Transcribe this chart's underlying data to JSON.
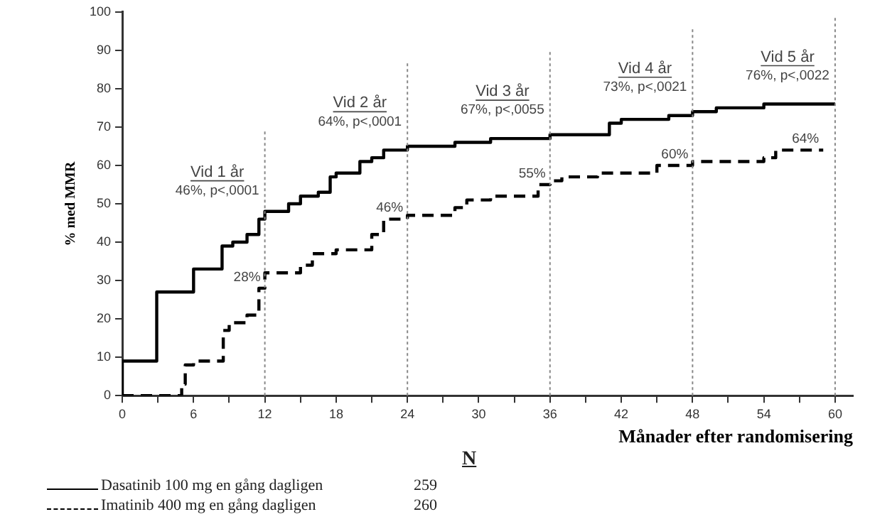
{
  "chart_data": {
    "type": "step",
    "xlabel": "Månader efter randomisering",
    "ylabel": "% med MMR",
    "xlim": [
      0,
      61.5
    ],
    "xticks": [
      0,
      {
        "value": 3,
        "label": null
      },
      6,
      {
        "value": 9,
        "label": null
      },
      12,
      {
        "value": 15,
        "label": null
      },
      18,
      {
        "value": 21,
        "label": null
      },
      24,
      {
        "value": 27,
        "label": null
      },
      30,
      {
        "value": 33,
        "label": null
      },
      36,
      {
        "value": 39,
        "label": null
      },
      42,
      {
        "value": 45,
        "label": null
      },
      48,
      {
        "value": 51,
        "label": null
      },
      54,
      {
        "value": 57,
        "label": null
      },
      60
    ],
    "ylim": [
      0,
      100
    ],
    "yticks": [
      0,
      10,
      20,
      30,
      40,
      50,
      60,
      70,
      80,
      90,
      100
    ],
    "grid": false,
    "legend": "bottom",
    "marker": "none",
    "series": [
      {
        "name": "Dasatinib 100 mg en gång dagligen",
        "color": "#000000",
        "line_style": "solid",
        "x": [
          0,
          2.9,
          6,
          8.4,
          9.3,
          10.5,
          11.5,
          12,
          14,
          15,
          16.5,
          17.5,
          18,
          20,
          21,
          22,
          24,
          28,
          31,
          36,
          41,
          42,
          46,
          48,
          50,
          54,
          55,
          60
        ],
        "values": [
          0,
          9,
          27,
          33,
          39,
          40,
          42,
          46,
          48,
          50,
          52,
          53,
          57,
          58,
          61,
          62,
          64,
          65,
          66,
          67,
          68,
          71,
          72,
          73,
          74,
          75,
          76,
          76
        ]
      },
      {
        "name": "Imatinib 400 mg en gång dagligen",
        "color": "#000000",
        "line_style": "dashed",
        "x": [
          0,
          5,
          5.3,
          6,
          8.5,
          9,
          10.5,
          11.5,
          12,
          15,
          16,
          18,
          21,
          22,
          24,
          28,
          29,
          31,
          35,
          36,
          37,
          40,
          45,
          48,
          54,
          55,
          59
        ],
        "values": [
          0,
          0,
          3,
          8,
          9,
          17,
          19,
          21,
          28,
          32,
          34,
          37,
          38,
          42,
          46,
          47,
          49,
          51,
          52,
          55,
          56,
          57,
          58,
          60,
          61,
          62,
          64
        ]
      }
    ],
    "ref_lines": [
      {
        "axis": "x",
        "value": 12,
        "label": "Vid 1 år",
        "line_style": "dotted",
        "color": "#888888"
      },
      {
        "axis": "x",
        "value": 24,
        "label": "Vid 2 år",
        "line_style": "dotted",
        "color": "#888888"
      },
      {
        "axis": "x",
        "value": 36,
        "label": "Vid 3 år",
        "line_style": "dotted",
        "color": "#888888"
      },
      {
        "axis": "x",
        "value": 48,
        "label": "Vid 4 år",
        "line_style": "dotted",
        "color": "#888888"
      },
      {
        "axis": "x",
        "value": 60,
        "label": "Vid 5 år",
        "line_style": "dotted",
        "color": "#888888"
      }
    ],
    "annotations": [
      {
        "text": "46%, p<,0001",
        "x": 12
      },
      {
        "text": "64%, p<,0001",
        "x": 24
      },
      {
        "text": "67%, p<,0055",
        "x": 36
      },
      {
        "text": "73%, p<,0021",
        "x": 48
      },
      {
        "text": "76%, p<,0022",
        "x": 60
      },
      {
        "text": "28%",
        "x": 12,
        "y": 28
      },
      {
        "text": "46%",
        "x": 24,
        "y": 46
      },
      {
        "text": "55%",
        "x": 36,
        "y": 55
      },
      {
        "text": "60%",
        "x": 48,
        "y": 60
      },
      {
        "text": "64%",
        "x": 59,
        "y": 64
      },
      "N",
      "259",
      "260"
    ]
  }
}
